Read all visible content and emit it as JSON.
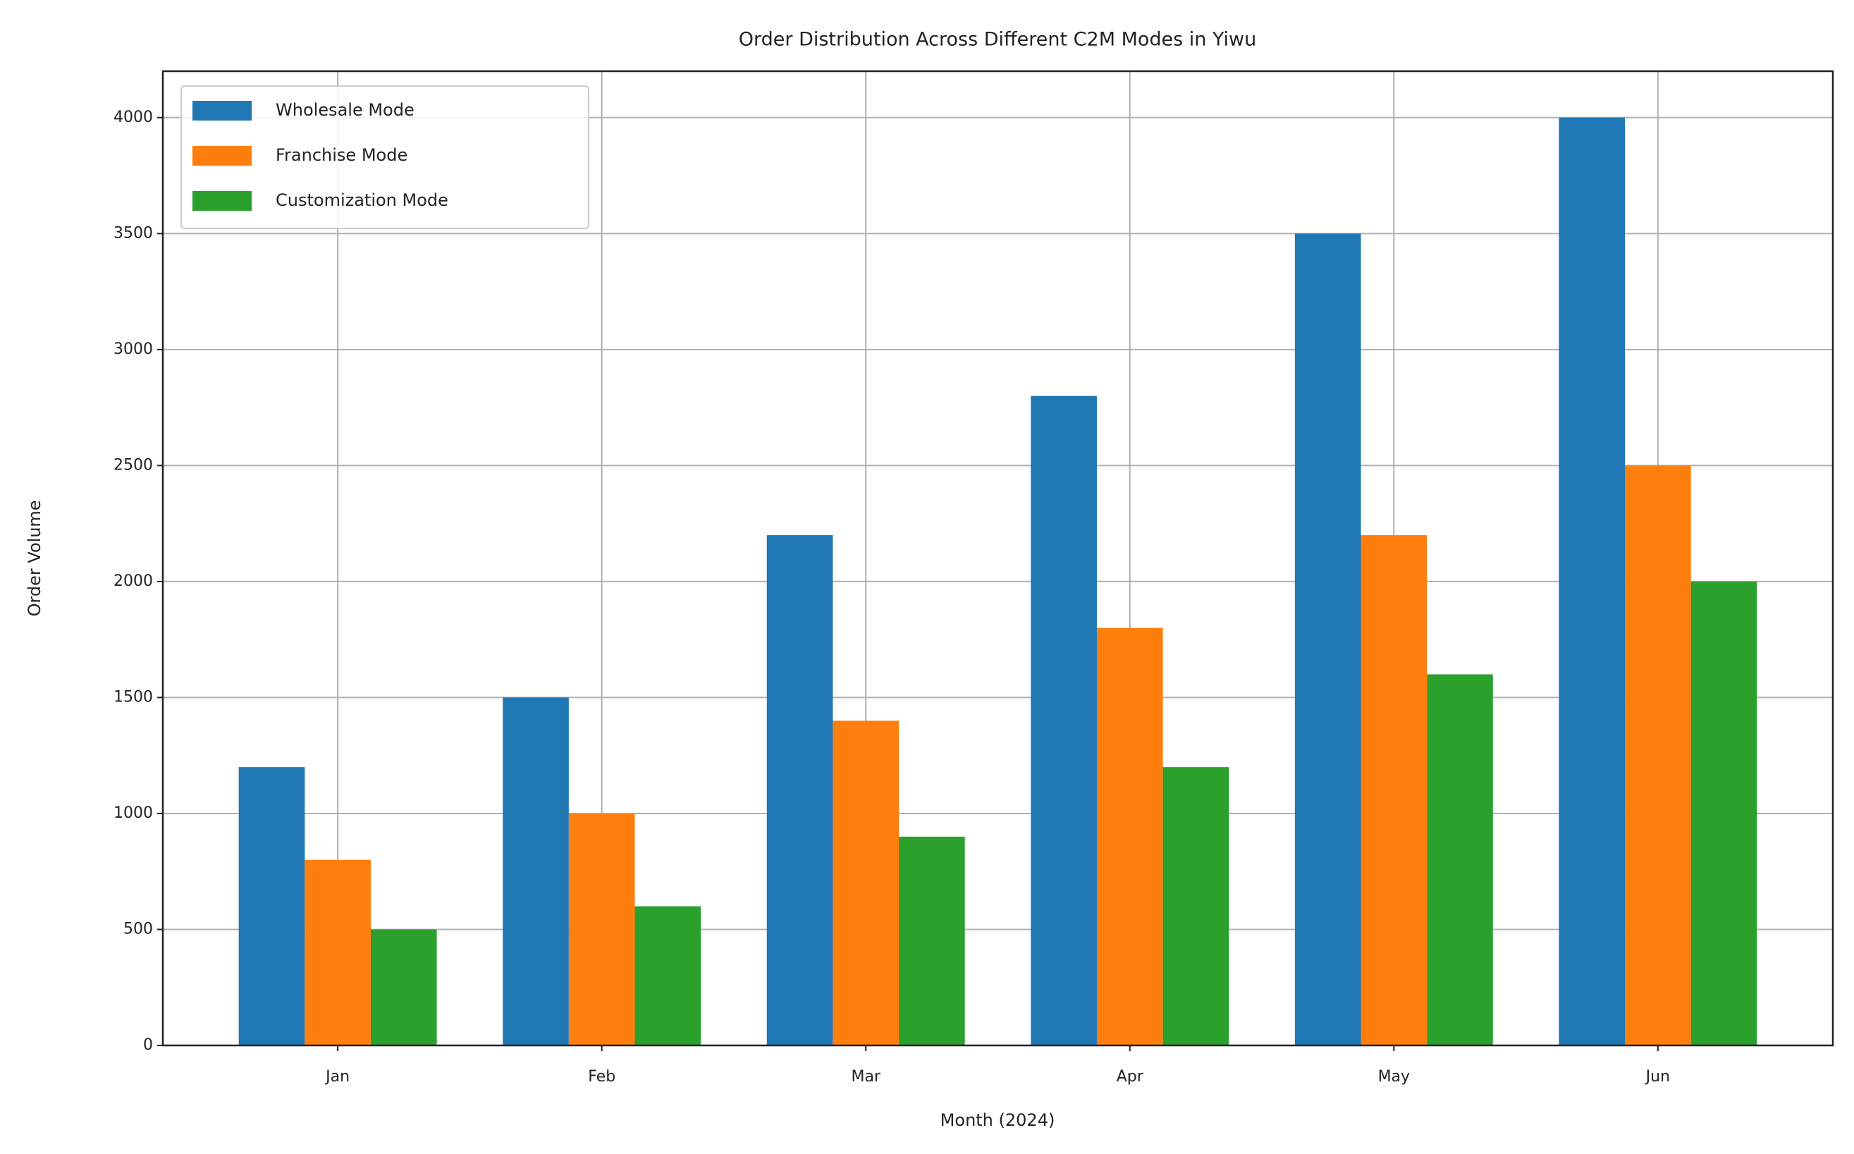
{
  "chart_data": {
    "type": "bar",
    "title": "Order Distribution Across Different C2M Modes in Yiwu",
    "x_label": "Month (2024)",
    "y_label": "Order Volume",
    "categories": [
      "Jan",
      "Feb",
      "Mar",
      "Apr",
      "May",
      "Jun"
    ],
    "series": [
      {
        "name": "Wholesale Mode",
        "color": "#1f77b4",
        "values": [
          1200,
          1500,
          2200,
          2800,
          3500,
          4000
        ]
      },
      {
        "name": "Franchise Mode",
        "color": "#ff7f0e",
        "values": [
          800,
          1000,
          1400,
          1800,
          2200,
          2500
        ]
      },
      {
        "name": "Customization Mode",
        "color": "#2ca02c",
        "values": [
          500,
          600,
          900,
          1200,
          1600,
          2000
        ]
      }
    ],
    "ylim": [
      0,
      4200
    ],
    "yticks": [
      0,
      500,
      1000,
      1500,
      2000,
      2500,
      3000,
      3500,
      4000
    ],
    "grid": true,
    "legend": "upper-left"
  }
}
